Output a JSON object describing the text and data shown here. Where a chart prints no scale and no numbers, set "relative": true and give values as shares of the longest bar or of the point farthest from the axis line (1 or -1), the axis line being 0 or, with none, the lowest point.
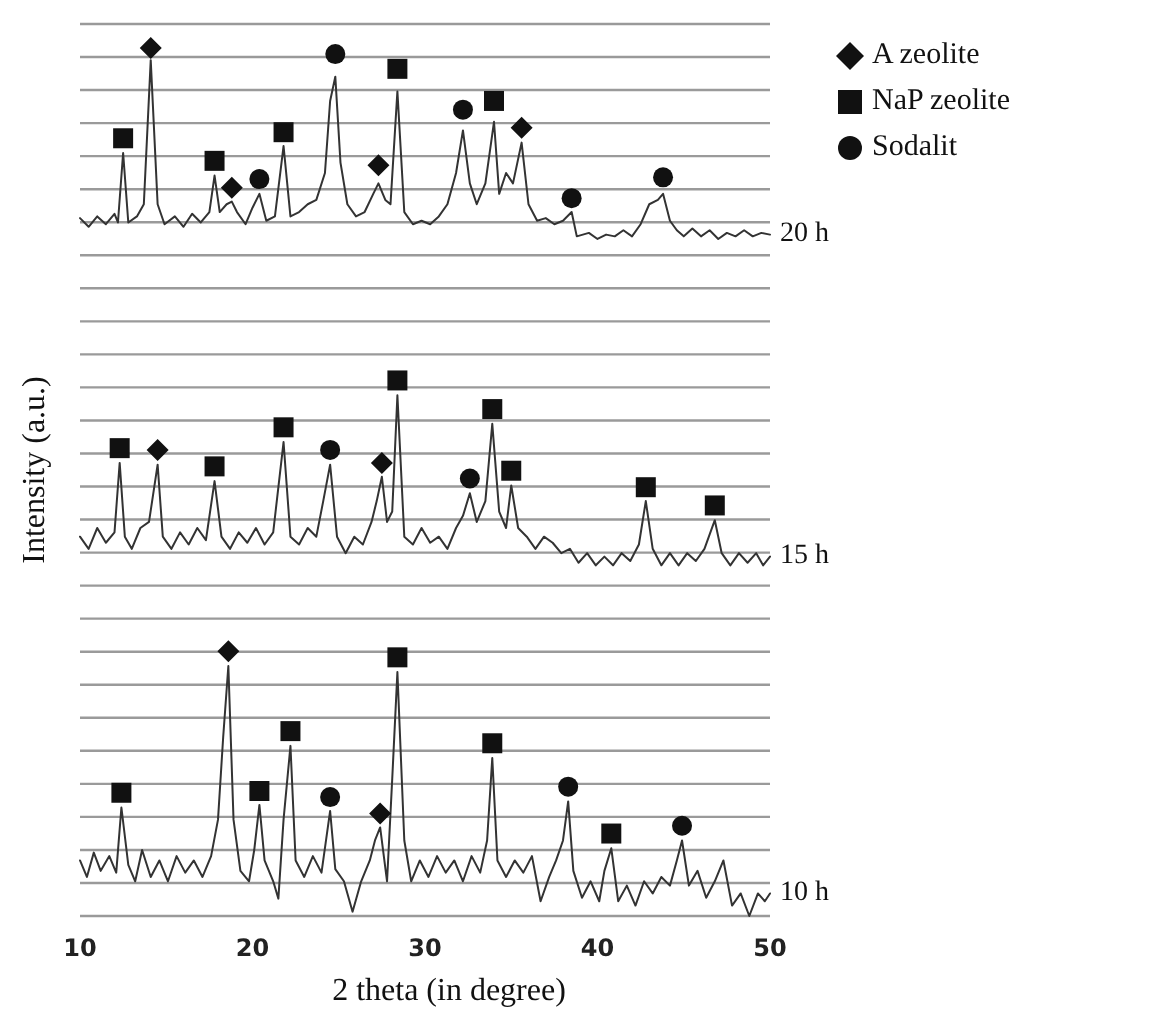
{
  "chart_data": {
    "type": "line",
    "xlabel": "2 theta (in degree)",
    "ylabel": "Intensity (a.u.)",
    "relative": true,
    "xlim": [
      10,
      50
    ],
    "xticks": [
      10,
      20,
      30,
      40,
      50
    ],
    "grid": "y",
    "legend": "top right",
    "line_style": "solid",
    "series": [
      {
        "name": "20 h",
        "type": "line",
        "color": "#333333",
        "x": [
          10,
          10.5,
          11,
          11.5,
          12,
          12.2,
          12.5,
          12.8,
          13.3,
          13.7,
          14.1,
          14.5,
          14.9,
          15.5,
          16,
          16.5,
          17,
          17.5,
          17.8,
          18.1,
          18.5,
          18.8,
          19.1,
          19.6,
          20,
          20.4,
          20.8,
          21.3,
          21.8,
          22.2,
          22.7,
          23.2,
          23.7,
          24.2,
          24.5,
          24.8,
          25.1,
          25.5,
          26,
          26.5,
          27,
          27.3,
          27.7,
          28,
          28.4,
          28.8,
          29.3,
          29.8,
          30.3,
          30.8,
          31.3,
          31.8,
          32.2,
          32.6,
          33,
          33.5,
          34,
          34.3,
          34.7,
          35.1,
          35.6,
          36,
          36.5,
          37,
          37.5,
          38,
          38.5,
          38.8,
          39.5,
          40,
          40.5,
          41,
          41.5,
          42,
          42.5,
          43,
          43.5,
          43.8,
          44.2,
          44.6,
          45,
          45.5,
          46,
          46.5,
          47,
          47.5,
          48,
          48.5,
          49,
          49.5,
          50
        ],
        "values": [
          0.804,
          0.794,
          0.806,
          0.797,
          0.809,
          0.799,
          0.879,
          0.799,
          0.806,
          0.82,
          0.986,
          0.82,
          0.797,
          0.806,
          0.794,
          0.809,
          0.799,
          0.811,
          0.853,
          0.811,
          0.82,
          0.823,
          0.811,
          0.797,
          0.816,
          0.832,
          0.801,
          0.806,
          0.887,
          0.806,
          0.811,
          0.82,
          0.825,
          0.856,
          0.939,
          0.967,
          0.868,
          0.82,
          0.806,
          0.811,
          0.832,
          0.844,
          0.825,
          0.82,
          0.95,
          0.811,
          0.797,
          0.801,
          0.797,
          0.806,
          0.82,
          0.856,
          0.905,
          0.844,
          0.82,
          0.844,
          0.915,
          0.832,
          0.856,
          0.844,
          0.891,
          0.82,
          0.801,
          0.804,
          0.797,
          0.801,
          0.811,
          0.783,
          0.787,
          0.78,
          0.785,
          0.783,
          0.79,
          0.783,
          0.797,
          0.82,
          0.825,
          0.832,
          0.801,
          0.79,
          0.783,
          0.792,
          0.783,
          0.79,
          0.78,
          0.787,
          0.783,
          0.79,
          0.783,
          0.787,
          0.785
        ]
      },
      {
        "name": "15 h",
        "type": "line",
        "color": "#333333",
        "x": [
          10,
          10.5,
          11,
          11.5,
          12,
          12.3,
          12.6,
          13,
          13.5,
          14,
          14.5,
          14.8,
          15.3,
          15.8,
          16.3,
          16.8,
          17.3,
          17.8,
          18.2,
          18.7,
          19.2,
          19.7,
          20.2,
          20.7,
          21.2,
          21.8,
          22.2,
          22.7,
          23.2,
          23.7,
          24.1,
          24.5,
          24.9,
          25.4,
          25.9,
          26.4,
          26.9,
          27.2,
          27.5,
          27.8,
          28.1,
          28.4,
          28.8,
          29.3,
          29.8,
          30.3,
          30.8,
          31.3,
          31.8,
          32.2,
          32.6,
          33,
          33.5,
          33.9,
          34.3,
          34.7,
          35,
          35.4,
          35.9,
          36.4,
          36.9,
          37.4,
          37.9,
          38.4,
          38.9,
          39.4,
          39.9,
          40.4,
          40.9,
          41.4,
          41.9,
          42.4,
          42.8,
          43.2,
          43.7,
          44.2,
          44.7,
          45.2,
          45.7,
          46.2,
          46.8,
          47.2,
          47.7,
          48.2,
          48.7,
          49.2,
          49.6,
          50
        ],
        "values": [
          0.437,
          0.423,
          0.447,
          0.43,
          0.442,
          0.522,
          0.437,
          0.423,
          0.447,
          0.454,
          0.52,
          0.437,
          0.423,
          0.442,
          0.428,
          0.447,
          0.433,
          0.501,
          0.437,
          0.423,
          0.442,
          0.43,
          0.447,
          0.428,
          0.442,
          0.546,
          0.437,
          0.428,
          0.447,
          0.437,
          0.478,
          0.52,
          0.437,
          0.418,
          0.437,
          0.428,
          0.454,
          0.478,
          0.506,
          0.454,
          0.466,
          0.6,
          0.437,
          0.428,
          0.447,
          0.43,
          0.437,
          0.423,
          0.447,
          0.461,
          0.487,
          0.454,
          0.478,
          0.567,
          0.466,
          0.447,
          0.496,
          0.447,
          0.437,
          0.423,
          0.437,
          0.43,
          0.418,
          0.423,
          0.407,
          0.418,
          0.404,
          0.414,
          0.404,
          0.418,
          0.409,
          0.428,
          0.478,
          0.423,
          0.404,
          0.418,
          0.404,
          0.418,
          0.409,
          0.423,
          0.456,
          0.418,
          0.404,
          0.418,
          0.407,
          0.418,
          0.404,
          0.414
        ]
      },
      {
        "name": "10 h",
        "type": "line",
        "color": "#333333",
        "x": [
          10,
          10.4,
          10.8,
          11.2,
          11.7,
          12.1,
          12.4,
          12.8,
          13.2,
          13.6,
          14.1,
          14.6,
          15.1,
          15.6,
          16.1,
          16.6,
          17.1,
          17.6,
          18,
          18.3,
          18.6,
          18.9,
          19.3,
          19.8,
          20.1,
          20.4,
          20.7,
          21.2,
          21.5,
          21.8,
          22.2,
          22.5,
          23,
          23.5,
          24,
          24.5,
          24.8,
          25.3,
          25.8,
          26.3,
          26.8,
          27.1,
          27.4,
          27.8,
          28.1,
          28.4,
          28.8,
          29.2,
          29.7,
          30.2,
          30.7,
          31.2,
          31.7,
          32.2,
          32.7,
          33.2,
          33.6,
          33.9,
          34.2,
          34.7,
          35.2,
          35.7,
          36.2,
          36.7,
          37.2,
          37.6,
          38,
          38.3,
          38.6,
          39.1,
          39.6,
          40.1,
          40.4,
          40.8,
          41.2,
          41.7,
          42.2,
          42.7,
          43.2,
          43.7,
          44.2,
          44.6,
          44.9,
          45.3,
          45.8,
          46.3,
          46.8,
          47.3,
          47.8,
          48.3,
          48.8,
          49.3,
          49.7,
          50
        ],
        "values": [
          0.064,
          0.045,
          0.073,
          0.052,
          0.069,
          0.05,
          0.125,
          0.059,
          0.04,
          0.076,
          0.045,
          0.064,
          0.04,
          0.069,
          0.05,
          0.064,
          0.045,
          0.069,
          0.111,
          0.206,
          0.288,
          0.111,
          0.052,
          0.04,
          0.076,
          0.128,
          0.064,
          0.04,
          0.02,
          0.111,
          0.196,
          0.064,
          0.045,
          0.069,
          0.05,
          0.121,
          0.054,
          0.04,
          0.005,
          0.04,
          0.064,
          0.087,
          0.102,
          0.04,
          0.158,
          0.281,
          0.087,
          0.04,
          0.064,
          0.045,
          0.069,
          0.05,
          0.064,
          0.04,
          0.069,
          0.05,
          0.087,
          0.182,
          0.064,
          0.045,
          0.064,
          0.05,
          0.069,
          0.017,
          0.045,
          0.064,
          0.087,
          0.132,
          0.052,
          0.021,
          0.04,
          0.017,
          0.052,
          0.078,
          0.017,
          0.035,
          0.012,
          0.04,
          0.026,
          0.045,
          0.035,
          0.064,
          0.087,
          0.035,
          0.052,
          0.021,
          0.04,
          0.064,
          0.012,
          0.026,
          0,
          0.026,
          0.017,
          0.026
        ]
      },
      {
        "name": "A zeolite",
        "type": "scatter",
        "marker": "diamond",
        "color": "#111111",
        "x": [
          14.1,
          18.8,
          27.3,
          35.6,
          14.5,
          27.5,
          18.6,
          27.4
        ],
        "values": [
          1.0,
          0.839,
          0.865,
          0.908,
          0.537,
          0.522,
          0.305,
          0.118
        ]
      },
      {
        "name": "NaP zeolite",
        "type": "scatter",
        "marker": "square",
        "color": "#111111",
        "x": [
          12.5,
          17.8,
          21.8,
          28.4,
          34,
          12.3,
          17.8,
          21.8,
          28.4,
          33.9,
          35,
          42.8,
          46.8,
          12.4,
          20.4,
          22.2,
          28.4,
          33.9,
          40.8
        ],
        "values": [
          0.896,
          0.87,
          0.903,
          0.976,
          0.939,
          0.539,
          0.518,
          0.563,
          0.617,
          0.584,
          0.513,
          0.494,
          0.473,
          0.142,
          0.144,
          0.213,
          0.298,
          0.199,
          0.095
        ]
      },
      {
        "name": "Sodalit",
        "type": "scatter",
        "marker": "circle",
        "color": "#111111",
        "x": [
          20.4,
          24.8,
          32.2,
          38.5,
          43.8,
          24.5,
          32.6,
          24.5,
          38.3,
          44.9
        ],
        "values": [
          0.849,
          0.993,
          0.929,
          0.827,
          0.851,
          0.537,
          0.504,
          0.137,
          0.149,
          0.104
        ]
      }
    ]
  }
}
